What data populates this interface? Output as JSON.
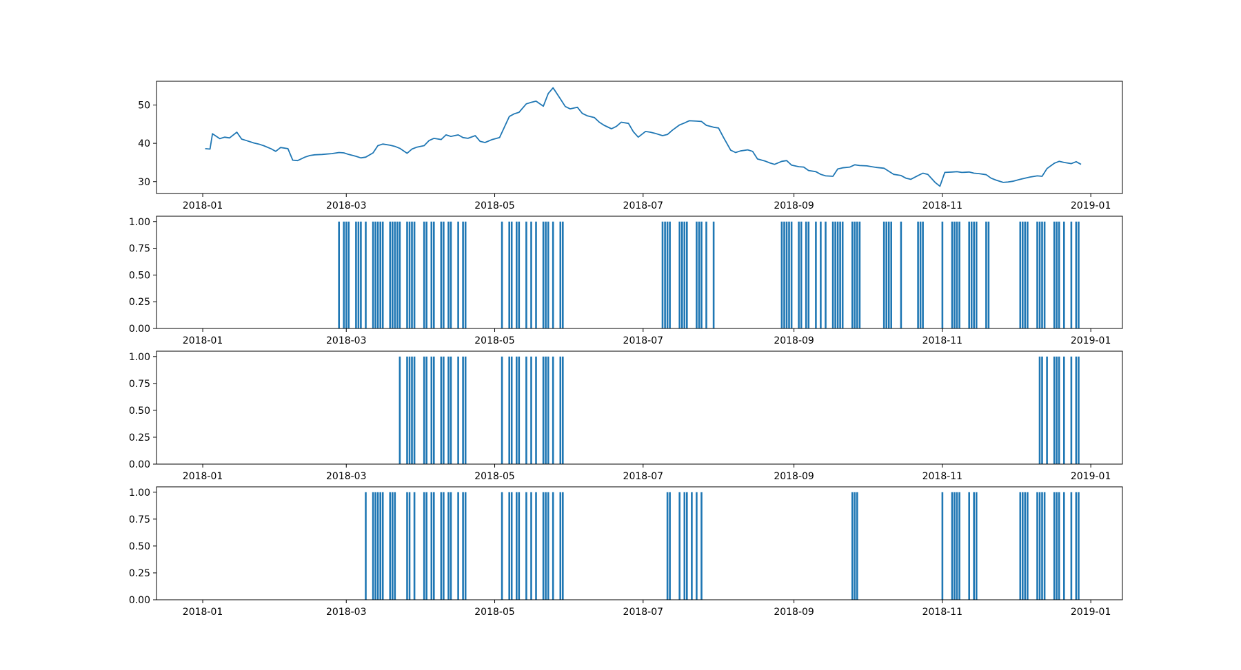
{
  "chart_data": [
    {
      "type": "line",
      "color": "#1f77b4",
      "x_type": "date",
      "xlim": [
        "2017-12-13",
        "2019-01-14"
      ],
      "ylim": [
        26.9,
        56.2
      ],
      "yticks": [
        30,
        40,
        50
      ],
      "ytick_labels": [
        "30",
        "40",
        "50"
      ],
      "xticks": [
        "2018-01-01",
        "2018-03-01",
        "2018-05-01",
        "2018-07-01",
        "2018-09-01",
        "2018-11-01",
        "2019-01-01"
      ],
      "xtick_labels": [
        "2018-01",
        "2018-03",
        "2018-05",
        "2018-07",
        "2018-09",
        "2018-11",
        "2019-01"
      ],
      "x": [
        "2018-01-02",
        "2018-01-04",
        "2018-01-05",
        "2018-01-08",
        "2018-01-10",
        "2018-01-12",
        "2018-01-15",
        "2018-01-17",
        "2018-01-19",
        "2018-01-22",
        "2018-01-24",
        "2018-01-26",
        "2018-01-29",
        "2018-01-31",
        "2018-02-02",
        "2018-02-05",
        "2018-02-07",
        "2018-02-09",
        "2018-02-12",
        "2018-02-14",
        "2018-02-16",
        "2018-02-19",
        "2018-02-21",
        "2018-02-23",
        "2018-02-26",
        "2018-02-28",
        "2018-03-02",
        "2018-03-05",
        "2018-03-07",
        "2018-03-09",
        "2018-03-12",
        "2018-03-14",
        "2018-03-16",
        "2018-03-19",
        "2018-03-21",
        "2018-03-23",
        "2018-03-26",
        "2018-03-28",
        "2018-03-30",
        "2018-04-02",
        "2018-04-04",
        "2018-04-06",
        "2018-04-09",
        "2018-04-11",
        "2018-04-13",
        "2018-04-16",
        "2018-04-18",
        "2018-04-20",
        "2018-04-23",
        "2018-04-25",
        "2018-04-27",
        "2018-04-30",
        "2018-05-03",
        "2018-05-07",
        "2018-05-09",
        "2018-05-11",
        "2018-05-14",
        "2018-05-16",
        "2018-05-18",
        "2018-05-21",
        "2018-05-23",
        "2018-05-25",
        "2018-05-28",
        "2018-05-30",
        "2018-06-01",
        "2018-06-04",
        "2018-06-06",
        "2018-06-08",
        "2018-06-11",
        "2018-06-13",
        "2018-06-15",
        "2018-06-18",
        "2018-06-20",
        "2018-06-22",
        "2018-06-25",
        "2018-06-27",
        "2018-06-29",
        "2018-07-02",
        "2018-07-04",
        "2018-07-06",
        "2018-07-09",
        "2018-07-11",
        "2018-07-13",
        "2018-07-16",
        "2018-07-18",
        "2018-07-20",
        "2018-07-23",
        "2018-07-25",
        "2018-07-27",
        "2018-07-30",
        "2018-08-01",
        "2018-08-03",
        "2018-08-06",
        "2018-08-08",
        "2018-08-10",
        "2018-08-13",
        "2018-08-15",
        "2018-08-17",
        "2018-08-20",
        "2018-08-22",
        "2018-08-24",
        "2018-08-27",
        "2018-08-29",
        "2018-08-31",
        "2018-09-03",
        "2018-09-05",
        "2018-09-07",
        "2018-09-10",
        "2018-09-12",
        "2018-09-14",
        "2018-09-17",
        "2018-09-19",
        "2018-09-21",
        "2018-09-24",
        "2018-09-26",
        "2018-09-28",
        "2018-10-01",
        "2018-10-03",
        "2018-10-05",
        "2018-10-08",
        "2018-10-10",
        "2018-10-12",
        "2018-10-15",
        "2018-10-17",
        "2018-10-19",
        "2018-10-22",
        "2018-10-24",
        "2018-10-26",
        "2018-10-29",
        "2018-10-31",
        "2018-11-02",
        "2018-11-05",
        "2018-11-07",
        "2018-11-09",
        "2018-11-12",
        "2018-11-14",
        "2018-11-16",
        "2018-11-19",
        "2018-11-21",
        "2018-11-23",
        "2018-11-26",
        "2018-11-28",
        "2018-11-30",
        "2018-12-03",
        "2018-12-05",
        "2018-12-07",
        "2018-12-10",
        "2018-12-12",
        "2018-12-14",
        "2018-12-17",
        "2018-12-19",
        "2018-12-21",
        "2018-12-24",
        "2018-12-26",
        "2018-12-28"
      ],
      "values": [
        38.6,
        38.5,
        42.5,
        41.2,
        41.6,
        41.4,
        42.9,
        41.1,
        40.7,
        40.1,
        39.8,
        39.4,
        38.6,
        37.9,
        38.9,
        38.6,
        35.6,
        35.5,
        36.4,
        36.8,
        37.0,
        37.1,
        37.2,
        37.3,
        37.6,
        37.5,
        37.1,
        36.6,
        36.2,
        36.4,
        37.5,
        39.4,
        39.8,
        39.5,
        39.2,
        38.7,
        37.4,
        38.5,
        39.0,
        39.4,
        40.7,
        41.3,
        41.0,
        42.2,
        41.8,
        42.2,
        41.5,
        41.3,
        42.0,
        40.5,
        40.2,
        41.0,
        41.5,
        47.0,
        47.7,
        48.1,
        50.3,
        50.7,
        51.0,
        49.7,
        53.0,
        54.5,
        51.6,
        49.6,
        49.0,
        49.4,
        47.8,
        47.2,
        46.7,
        45.5,
        44.7,
        43.8,
        44.4,
        45.5,
        45.2,
        43.0,
        41.6,
        43.1,
        42.9,
        42.6,
        42.0,
        42.3,
        43.4,
        44.8,
        45.3,
        45.9,
        45.8,
        45.7,
        44.7,
        44.2,
        44.0,
        41.6,
        38.2,
        37.6,
        38.0,
        38.3,
        37.9,
        35.9,
        35.4,
        34.9,
        34.5,
        35.3,
        35.5,
        34.3,
        33.9,
        33.8,
        32.9,
        32.6,
        31.9,
        31.5,
        31.4,
        33.3,
        33.6,
        33.8,
        34.4,
        34.2,
        34.1,
        33.9,
        33.7,
        33.5,
        32.7,
        31.9,
        31.6,
        30.9,
        30.6,
        31.6,
        32.2,
        31.9,
        29.8,
        28.8,
        32.4,
        32.5,
        32.6,
        32.4,
        32.5,
        32.2,
        32.1,
        31.8,
        30.9,
        30.4,
        29.8,
        29.9,
        30.1,
        30.6,
        30.9,
        31.2,
        31.5,
        31.4,
        33.4,
        34.8,
        35.3,
        35.0,
        34.7,
        35.2,
        34.5
      ],
      "xlabel": "",
      "ylabel": "",
      "title": ""
    },
    {
      "type": "bar",
      "color": "#1f77b4",
      "ylim": [
        0,
        1.05
      ],
      "yticks": [
        0,
        0.25,
        0.5,
        0.75,
        1.0
      ],
      "ytick_labels": [
        "0.00",
        "0.25",
        "0.50",
        "0.75",
        "1.00"
      ],
      "xtick_labels": [
        "2018-01",
        "2018-03",
        "2018-05",
        "2018-07",
        "2018-09",
        "2018-11",
        "2019-01"
      ],
      "x": [
        "2018-02-26",
        "2018-02-28",
        "2018-03-01",
        "2018-03-02",
        "2018-03-05",
        "2018-03-06",
        "2018-03-07",
        "2018-03-09",
        "2018-03-12",
        "2018-03-13",
        "2018-03-14",
        "2018-03-15",
        "2018-03-16",
        "2018-03-19",
        "2018-03-20",
        "2018-03-21",
        "2018-03-22",
        "2018-03-23",
        "2018-03-26",
        "2018-03-27",
        "2018-03-28",
        "2018-03-29",
        "2018-04-02",
        "2018-04-03",
        "2018-04-05",
        "2018-04-06",
        "2018-04-09",
        "2018-04-10",
        "2018-04-12",
        "2018-04-13",
        "2018-04-16",
        "2018-04-18",
        "2018-04-19",
        "2018-05-04",
        "2018-05-07",
        "2018-05-08",
        "2018-05-10",
        "2018-05-11",
        "2018-05-14",
        "2018-05-16",
        "2018-05-18",
        "2018-05-21",
        "2018-05-22",
        "2018-05-23",
        "2018-05-25",
        "2018-05-28",
        "2018-05-29",
        "2018-07-09",
        "2018-07-10",
        "2018-07-11",
        "2018-07-12",
        "2018-07-16",
        "2018-07-17",
        "2018-07-18",
        "2018-07-19",
        "2018-07-23",
        "2018-07-24",
        "2018-07-25",
        "2018-07-27",
        "2018-07-30",
        "2018-08-27",
        "2018-08-28",
        "2018-08-29",
        "2018-08-30",
        "2018-08-31",
        "2018-09-03",
        "2018-09-04",
        "2018-09-06",
        "2018-09-07",
        "2018-09-10",
        "2018-09-12",
        "2018-09-14",
        "2018-09-17",
        "2018-09-18",
        "2018-09-19",
        "2018-09-20",
        "2018-09-21",
        "2018-09-25",
        "2018-09-26",
        "2018-09-27",
        "2018-09-28",
        "2018-10-08",
        "2018-10-09",
        "2018-10-10",
        "2018-10-11",
        "2018-10-15",
        "2018-10-22",
        "2018-10-23",
        "2018-10-24",
        "2018-11-01",
        "2018-11-05",
        "2018-11-06",
        "2018-11-07",
        "2018-11-08",
        "2018-11-12",
        "2018-11-13",
        "2018-11-14",
        "2018-11-15",
        "2018-11-19",
        "2018-11-20",
        "2018-12-03",
        "2018-12-04",
        "2018-12-05",
        "2018-12-06",
        "2018-12-10",
        "2018-12-11",
        "2018-12-12",
        "2018-12-13",
        "2018-12-17",
        "2018-12-18",
        "2018-12-19",
        "2018-12-21",
        "2018-12-24",
        "2018-12-26",
        "2018-12-27"
      ],
      "values": [
        1,
        1,
        1,
        1,
        1,
        1,
        1,
        1,
        1,
        1,
        1,
        1,
        1,
        1,
        1,
        1,
        1,
        1,
        1,
        1,
        1,
        1,
        1,
        1,
        1,
        1,
        1,
        1,
        1,
        1,
        1,
        1,
        1,
        1,
        1,
        1,
        1,
        1,
        1,
        1,
        1,
        1,
        1,
        1,
        1,
        1,
        1,
        1,
        1,
        1,
        1,
        1,
        1,
        1,
        1,
        1,
        1,
        1,
        1,
        1,
        1,
        1,
        1,
        1,
        1,
        1,
        1,
        1,
        1,
        1,
        1,
        1,
        1,
        1,
        1,
        1,
        1,
        1,
        1,
        1,
        1,
        1,
        1,
        1,
        1,
        1,
        1,
        1,
        1,
        1,
        1,
        1,
        1,
        1,
        1,
        1,
        1,
        1,
        1,
        1,
        1,
        1,
        1,
        1,
        1,
        1,
        1,
        1,
        1,
        1,
        1,
        1,
        1,
        1,
        1
      ]
    },
    {
      "type": "bar",
      "color": "#1f77b4",
      "ylim": [
        0,
        1.05
      ],
      "yticks": [
        0,
        0.25,
        0.5,
        0.75,
        1.0
      ],
      "ytick_labels": [
        "0.00",
        "0.25",
        "0.50",
        "0.75",
        "1.00"
      ],
      "xtick_labels": [
        "2018-01",
        "2018-03",
        "2018-05",
        "2018-07",
        "2018-09",
        "2018-11",
        "2019-01"
      ],
      "x": [
        "2018-03-23",
        "2018-03-26",
        "2018-03-27",
        "2018-03-28",
        "2018-03-29",
        "2018-04-02",
        "2018-04-03",
        "2018-04-05",
        "2018-04-06",
        "2018-04-09",
        "2018-04-10",
        "2018-04-12",
        "2018-04-13",
        "2018-04-16",
        "2018-04-18",
        "2018-04-19",
        "2018-05-04",
        "2018-05-07",
        "2018-05-08",
        "2018-05-10",
        "2018-05-11",
        "2018-05-14",
        "2018-05-16",
        "2018-05-18",
        "2018-05-21",
        "2018-05-22",
        "2018-05-23",
        "2018-05-25",
        "2018-05-28",
        "2018-05-29",
        "2018-12-11",
        "2018-12-12",
        "2018-12-14",
        "2018-12-17",
        "2018-12-18",
        "2018-12-19",
        "2018-12-21",
        "2018-12-24",
        "2018-12-26",
        "2018-12-27"
      ],
      "values": [
        1,
        1,
        1,
        1,
        1,
        1,
        1,
        1,
        1,
        1,
        1,
        1,
        1,
        1,
        1,
        1,
        1,
        1,
        1,
        1,
        1,
        1,
        1,
        1,
        1,
        1,
        1,
        1,
        1,
        1,
        1,
        1,
        1,
        1,
        1,
        1,
        1,
        1,
        1,
        1
      ]
    },
    {
      "type": "bar",
      "color": "#1f77b4",
      "ylim": [
        0,
        1.05
      ],
      "yticks": [
        0,
        0.25,
        0.5,
        0.75,
        1.0
      ],
      "ytick_labels": [
        "0.00",
        "0.25",
        "0.50",
        "0.75",
        "1.00"
      ],
      "xtick_labels": [
        "2018-01",
        "2018-03",
        "2018-05",
        "2018-07",
        "2018-09",
        "2018-11",
        "2019-01"
      ],
      "x": [
        "2018-03-09",
        "2018-03-12",
        "2018-03-13",
        "2018-03-14",
        "2018-03-15",
        "2018-03-16",
        "2018-03-19",
        "2018-03-20",
        "2018-03-21",
        "2018-03-26",
        "2018-03-27",
        "2018-03-29",
        "2018-04-02",
        "2018-04-03",
        "2018-04-05",
        "2018-04-06",
        "2018-04-09",
        "2018-04-10",
        "2018-04-12",
        "2018-04-13",
        "2018-04-16",
        "2018-04-18",
        "2018-04-19",
        "2018-05-04",
        "2018-05-07",
        "2018-05-08",
        "2018-05-10",
        "2018-05-11",
        "2018-05-14",
        "2018-05-16",
        "2018-05-18",
        "2018-05-21",
        "2018-05-22",
        "2018-05-23",
        "2018-05-25",
        "2018-05-28",
        "2018-05-29",
        "2018-07-11",
        "2018-07-12",
        "2018-07-16",
        "2018-07-18",
        "2018-07-19",
        "2018-07-21",
        "2018-07-23",
        "2018-07-25",
        "2018-09-25",
        "2018-09-26",
        "2018-09-27",
        "2018-11-01",
        "2018-11-05",
        "2018-11-06",
        "2018-11-07",
        "2018-11-08",
        "2018-11-12",
        "2018-11-14",
        "2018-11-15",
        "2018-12-03",
        "2018-12-04",
        "2018-12-05",
        "2018-12-06",
        "2018-12-10",
        "2018-12-11",
        "2018-12-12",
        "2018-12-13",
        "2018-12-17",
        "2018-12-18",
        "2018-12-19",
        "2018-12-21",
        "2018-12-24",
        "2018-12-26",
        "2018-12-27"
      ],
      "values": [
        1,
        1,
        1,
        1,
        1,
        1,
        1,
        1,
        1,
        1,
        1,
        1,
        1,
        1,
        1,
        1,
        1,
        1,
        1,
        1,
        1,
        1,
        1,
        1,
        1,
        1,
        1,
        1,
        1,
        1,
        1,
        1,
        1,
        1,
        1,
        1,
        1,
        1,
        1,
        1,
        1,
        1,
        1,
        1,
        1,
        1,
        1,
        1,
        1,
        1,
        1,
        1,
        1,
        1,
        1,
        1,
        1,
        1,
        1,
        1,
        1,
        1,
        1,
        1,
        1,
        1,
        1,
        1,
        1,
        1,
        1
      ]
    }
  ]
}
